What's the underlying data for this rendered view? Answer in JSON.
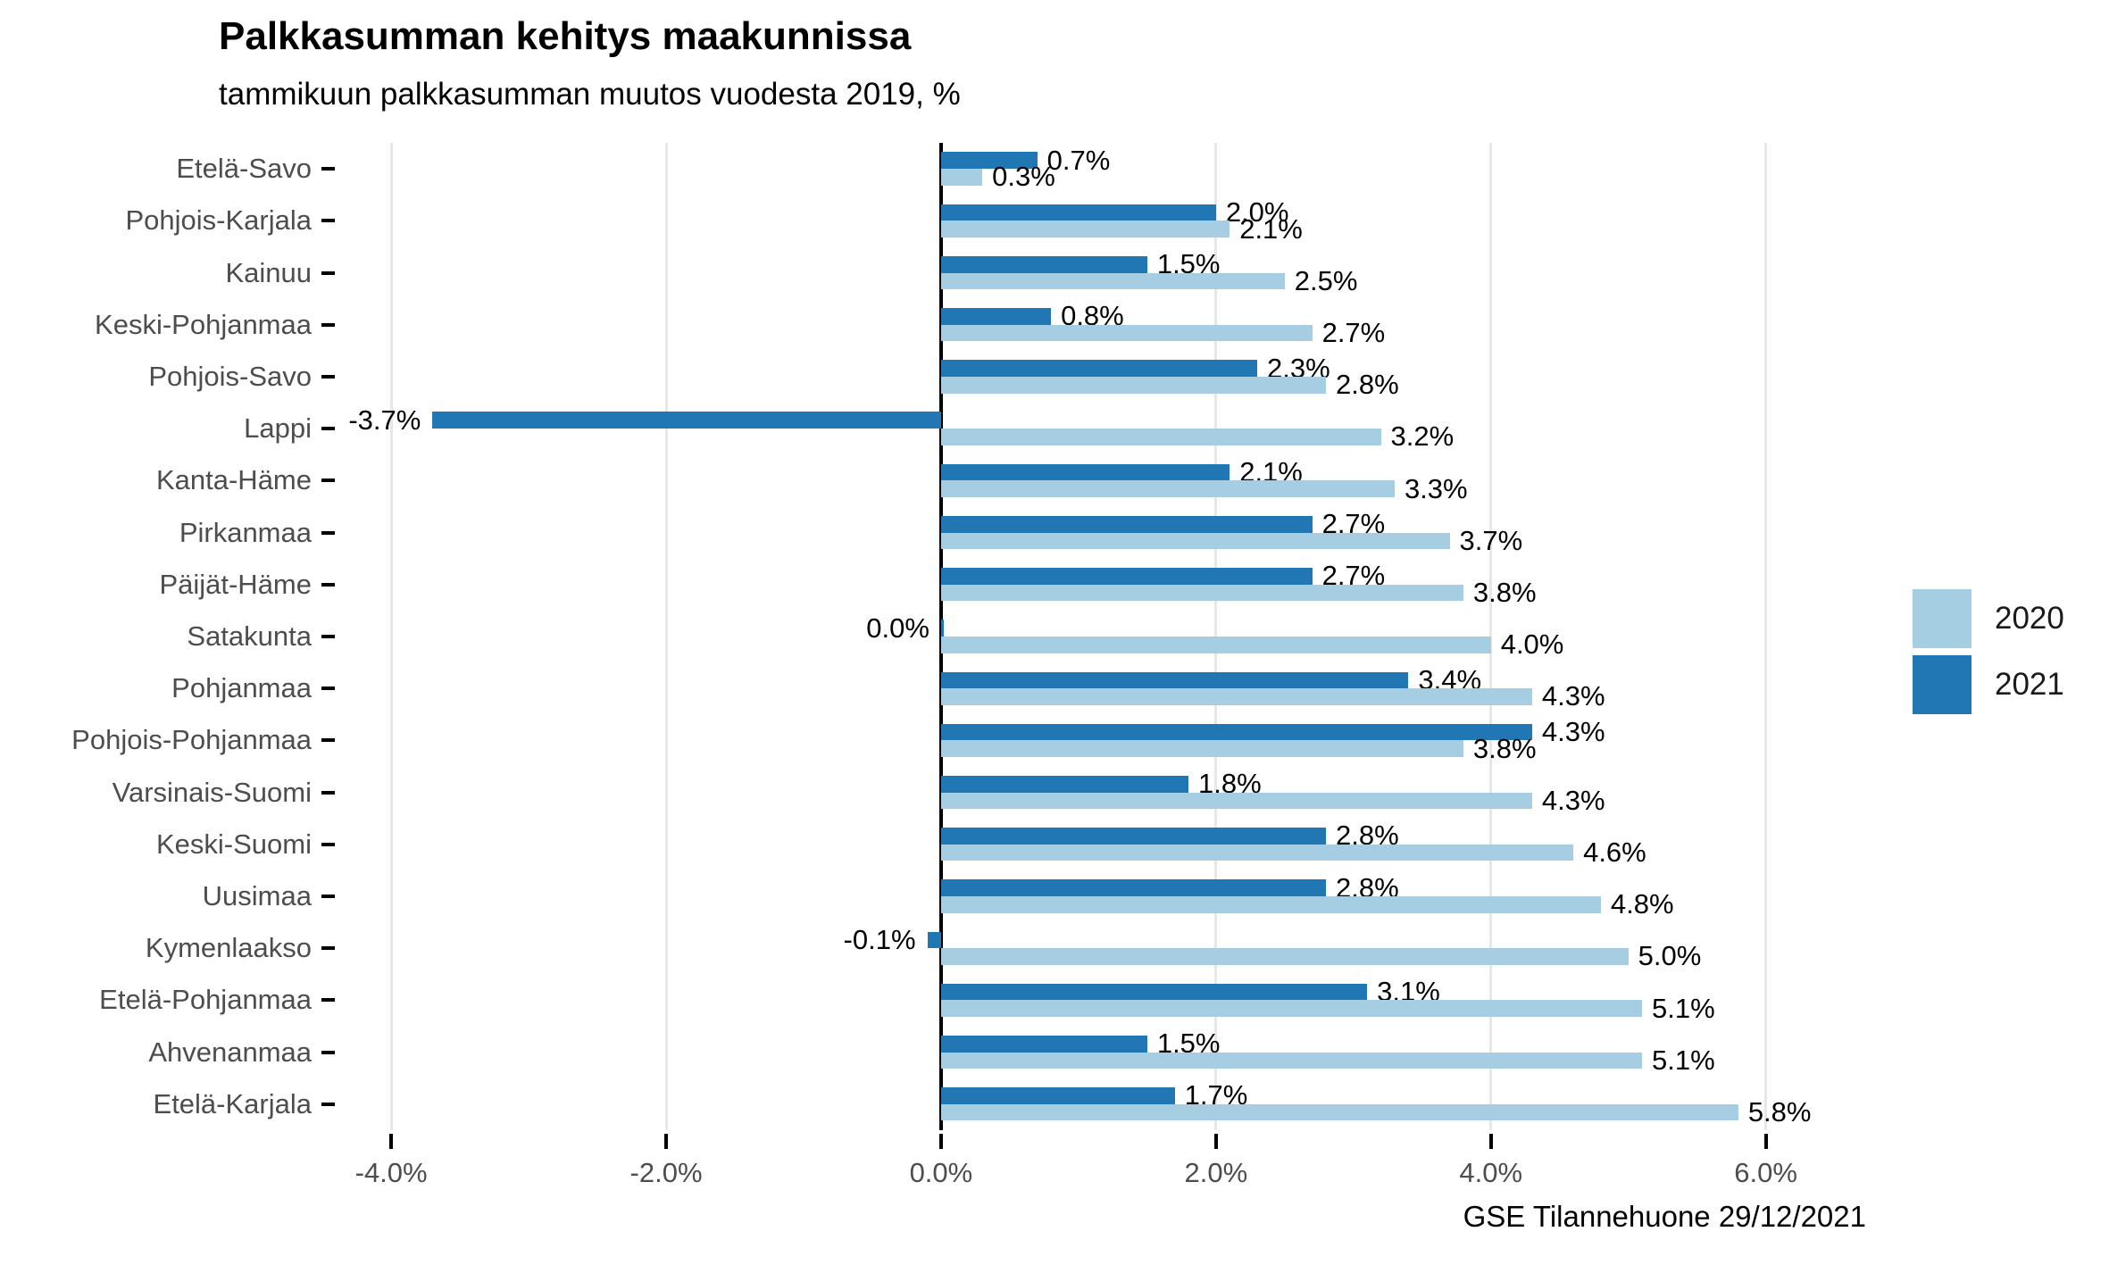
{
  "header": {
    "title": "Palkkasumman kehitys maakunnissa",
    "subtitle": "tammikuun palkkasumman muutos vuodesta 2019, %"
  },
  "caption": "GSE Tilannehuone 29/12/2021",
  "colors": {
    "series_2020": "#A6CEE3",
    "series_2021": "#2176B4",
    "grid": "#E7E7E7",
    "zero_line": "#000000",
    "axis_text": "#4D4D4D",
    "value_text": "#000000",
    "background": "#FFFFFF"
  },
  "chart_data": {
    "type": "bar",
    "orientation": "horizontal",
    "title": "Palkkasumman kehitys maakunnissa",
    "subtitle": "tammikuun palkkasumman muutos vuodesta 2019, %",
    "caption": "GSE Tilannehuone 29/12/2021",
    "categories": [
      "Etelä-Savo",
      "Pohjois-Karjala",
      "Kainuu",
      "Keski-Pohjanmaa",
      "Pohjois-Savo",
      "Lappi",
      "Kanta-Häme",
      "Pirkanmaa",
      "Päijät-Häme",
      "Satakunta",
      "Pohjanmaa",
      "Pohjois-Pohjanmaa",
      "Varsinais-Suomi",
      "Keski-Suomi",
      "Uusimaa",
      "Kymenlaakso",
      "Etelä-Pohjanmaa",
      "Ahvenanmaa",
      "Etelä-Karjala"
    ],
    "series": [
      {
        "name": "2020",
        "color": "#A6CEE3",
        "values": [
          0.3,
          2.1,
          2.5,
          2.7,
          2.8,
          3.2,
          3.3,
          3.7,
          3.8,
          4.0,
          4.3,
          3.8,
          4.3,
          4.6,
          4.8,
          5.0,
          5.1,
          5.1,
          5.8
        ]
      },
      {
        "name": "2021",
        "color": "#2176B4",
        "values": [
          0.7,
          2.0,
          1.5,
          0.8,
          2.3,
          -3.7,
          2.1,
          2.7,
          2.7,
          0.0,
          3.4,
          4.3,
          1.8,
          2.8,
          2.8,
          -0.1,
          3.1,
          1.5,
          1.7
        ]
      }
    ],
    "row_order_top_to_bottom": [
      "2021",
      "2020"
    ],
    "value_labels": {
      "decimals": 1,
      "suffix": "%"
    },
    "x_axis": {
      "ticks": [
        -4,
        -2,
        0,
        2,
        4,
        6
      ],
      "tick_label_decimals": 1,
      "tick_label_suffix": "%",
      "min": -4.41,
      "max": 6.73
    },
    "grid": "vertical-major-only",
    "legend": {
      "position": "right",
      "entries": [
        "2020",
        "2021"
      ]
    }
  }
}
